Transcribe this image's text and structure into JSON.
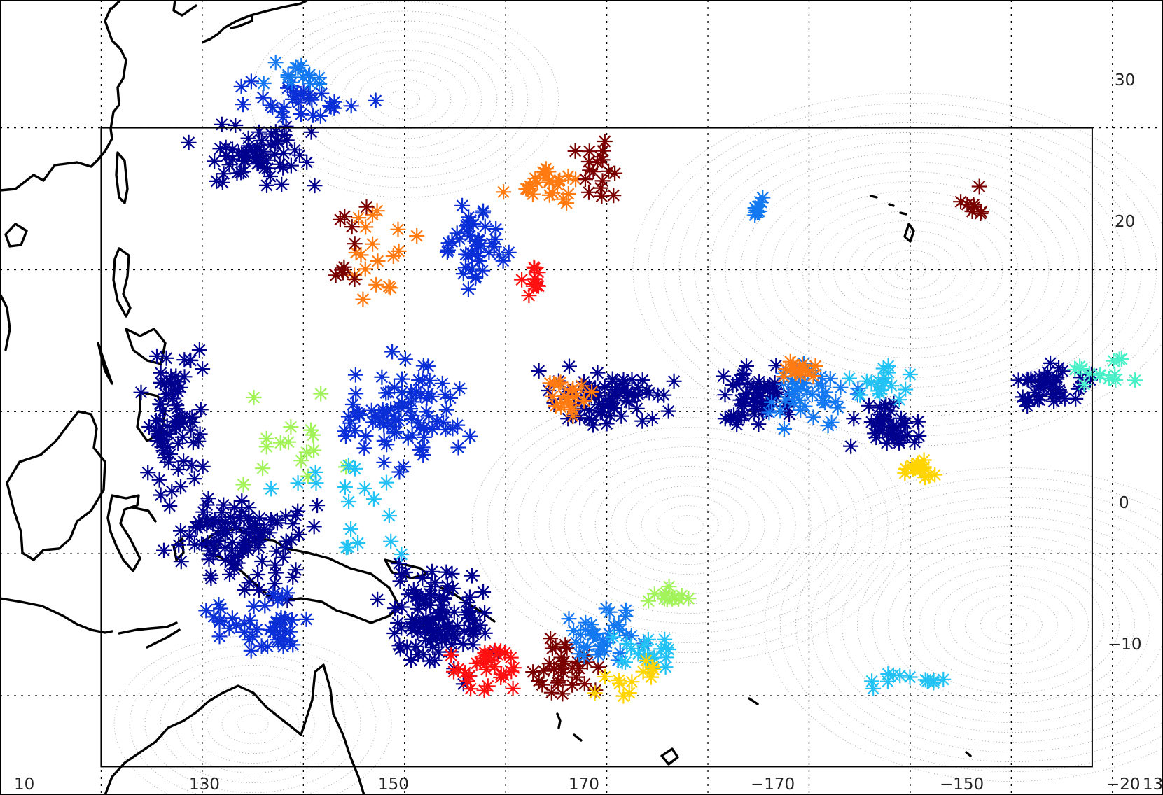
{
  "map": {
    "lon_labels": [
      "10",
      "130",
      "150",
      "170",
      "−170",
      "−150",
      "−20"
    ],
    "lat_labels": [
      "30",
      "20",
      "0",
      "−10"
    ],
    "corner_label": "13",
    "marker_symbol": "*",
    "colors": {
      "navy": "#00008f",
      "blue": "#0a2fd6",
      "azure": "#1478f0",
      "sky": "#22c2f4",
      "aqua": "#4af0c8",
      "lime": "#a2f25a",
      "gold": "#ffd400",
      "orange": "#ff7a10",
      "red": "#ff1010",
      "maroon": "#7a0000"
    }
  },
  "chart_data": {
    "type": "scatter",
    "title": "",
    "xlabel": "",
    "ylabel": "",
    "xlim": [
      110,
      225
    ],
    "ylim": [
      -17,
      39
    ],
    "grid": true,
    "projection": "equirectangular",
    "region_box": {
      "lon": [
        120,
        218
      ],
      "lat": [
        -15,
        30
      ]
    },
    "clusters": [
      {
        "lon": 135,
        "lat": 28,
        "lon_spread": 10,
        "lat_spread": 3,
        "count": 60,
        "color": "navy"
      },
      {
        "lon": 140,
        "lat": 32,
        "lon_spread": 8,
        "lat_spread": 2,
        "count": 30,
        "color": "blue"
      },
      {
        "lon": 140,
        "lat": 33,
        "lon_spread": 6,
        "lat_spread": 2,
        "count": 14,
        "color": "azure"
      },
      {
        "lon": 127,
        "lat": 10,
        "lon_spread": 4,
        "lat_spread": 7,
        "count": 80,
        "color": "navy"
      },
      {
        "lon": 134,
        "lat": 1,
        "lon_spread": 9,
        "lat_spread": 5,
        "count": 110,
        "color": "navy"
      },
      {
        "lon": 136,
        "lat": -5,
        "lon_spread": 7,
        "lat_spread": 3,
        "count": 45,
        "color": "blue"
      },
      {
        "lon": 153,
        "lat": -5,
        "lon_spread": 7,
        "lat_spread": 5,
        "count": 120,
        "color": "navy"
      },
      {
        "lon": 158,
        "lat": -8,
        "lon_spread": 6,
        "lat_spread": 3,
        "count": 30,
        "color": "red"
      },
      {
        "lon": 166,
        "lat": -8,
        "lon_spread": 5,
        "lat_spread": 3,
        "count": 30,
        "color": "maroon"
      },
      {
        "lon": 170,
        "lat": -6,
        "lon_spread": 6,
        "lat_spread": 3,
        "count": 35,
        "color": "azure"
      },
      {
        "lon": 174,
        "lat": -7,
        "lon_spread": 4,
        "lat_spread": 2,
        "count": 20,
        "color": "sky"
      },
      {
        "lon": 172,
        "lat": -9,
        "lon_spread": 4,
        "lat_spread": 2,
        "count": 12,
        "color": "gold"
      },
      {
        "lon": 176,
        "lat": -3,
        "lon_spread": 4,
        "lat_spread": 1,
        "count": 12,
        "color": "lime"
      },
      {
        "lon": 150,
        "lat": 10,
        "lon_spread": 8,
        "lat_spread": 5,
        "count": 90,
        "color": "blue"
      },
      {
        "lon": 157,
        "lat": 22,
        "lon_spread": 4,
        "lat_spread": 4,
        "count": 45,
        "color": "blue"
      },
      {
        "lon": 164,
        "lat": 26,
        "lon_spread": 5,
        "lat_spread": 2,
        "count": 25,
        "color": "orange"
      },
      {
        "lon": 169,
        "lat": 27,
        "lon_spread": 3,
        "lat_spread": 4,
        "count": 18,
        "color": "maroon"
      },
      {
        "lon": 163,
        "lat": 19,
        "lon_spread": 2,
        "lat_spread": 2,
        "count": 12,
        "color": "red"
      },
      {
        "lon": 170,
        "lat": 11,
        "lon_spread": 8,
        "lat_spread": 3,
        "count": 70,
        "color": "navy"
      },
      {
        "lon": 166,
        "lat": 11,
        "lon_spread": 4,
        "lat_spread": 2,
        "count": 20,
        "color": "orange"
      },
      {
        "lon": 185,
        "lat": 11,
        "lon_spread": 5,
        "lat_spread": 3,
        "count": 60,
        "color": "navy"
      },
      {
        "lon": 190,
        "lat": 11,
        "lon_spread": 6,
        "lat_spread": 3,
        "count": 40,
        "color": "azure"
      },
      {
        "lon": 189,
        "lat": 13,
        "lon_spread": 3,
        "lat_spread": 1,
        "count": 14,
        "color": "orange"
      },
      {
        "lon": 198,
        "lat": 9,
        "lon_spread": 5,
        "lat_spread": 2,
        "count": 40,
        "color": "navy"
      },
      {
        "lon": 201,
        "lat": 6,
        "lon_spread": 2,
        "lat_spread": 1,
        "count": 16,
        "color": "gold"
      },
      {
        "lon": 197,
        "lat": 12,
        "lon_spread": 5,
        "lat_spread": 2,
        "count": 18,
        "color": "sky"
      },
      {
        "lon": 214,
        "lat": 12,
        "lon_spread": 5,
        "lat_spread": 2,
        "count": 45,
        "color": "navy"
      },
      {
        "lon": 218,
        "lat": 13,
        "lon_spread": 5,
        "lat_spread": 2,
        "count": 14,
        "color": "aqua"
      },
      {
        "lon": 185,
        "lat": 25,
        "lon_spread": 1,
        "lat_spread": 2,
        "count": 10,
        "color": "azure"
      },
      {
        "lon": 206,
        "lat": 25,
        "lon_spread": 2,
        "lat_spread": 2,
        "count": 8,
        "color": "maroon"
      },
      {
        "lon": 147,
        "lat": 22,
        "lon_spread": 5,
        "lat_spread": 6,
        "count": 18,
        "color": "orange"
      },
      {
        "lon": 145,
        "lat": 21,
        "lon_spread": 4,
        "lat_spread": 6,
        "count": 10,
        "color": "maroon"
      },
      {
        "lon": 200,
        "lat": -9,
        "lon_spread": 8,
        "lat_spread": 1,
        "count": 12,
        "color": "sky"
      },
      {
        "lon": 140,
        "lat": 8,
        "lon_spread": 8,
        "lat_spread": 6,
        "count": 16,
        "color": "lime"
      },
      {
        "lon": 145,
        "lat": 3,
        "lon_spread": 10,
        "lat_spread": 6,
        "count": 18,
        "color": "sky"
      }
    ]
  }
}
